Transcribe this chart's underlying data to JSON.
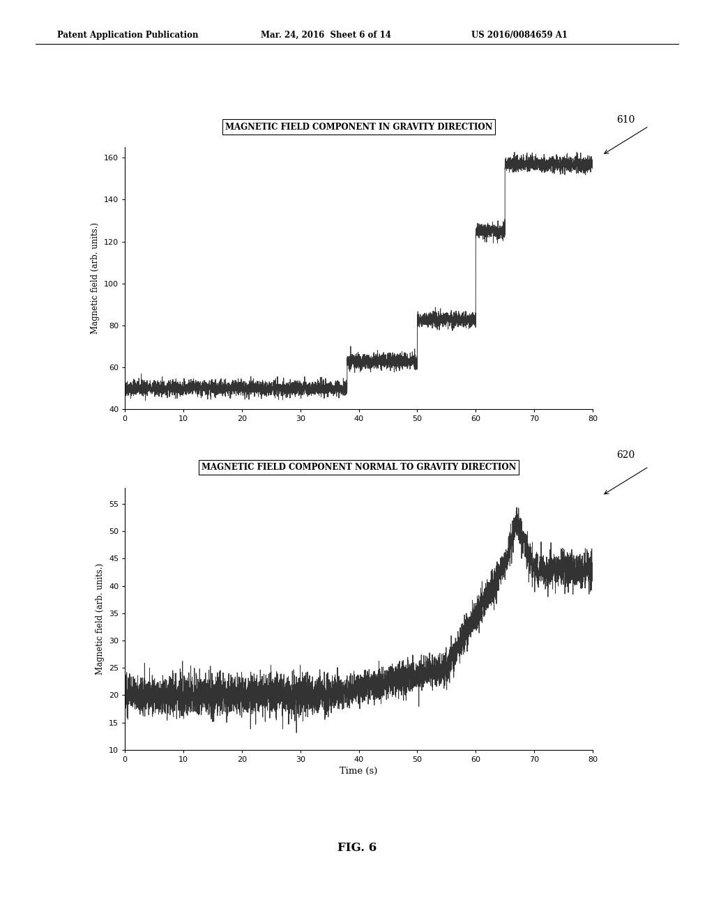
{
  "fig_width": 10.24,
  "fig_height": 13.2,
  "dpi": 100,
  "bg_color": "#ffffff",
  "header_text": "Patent Application Publication",
  "header_date": "Mar. 24, 2016  Sheet 6 of 14",
  "header_patent": "US 2016/0084659 A1",
  "fig_label": "FIG. 6",
  "plot1_title": "MAGNETIC FIELD COMPONENT IN GRAVITY DIRECTION",
  "plot1_ylabel": "Magnetic field (arb. units.)",
  "plot1_ylim": [
    40,
    165
  ],
  "plot1_yticks": [
    40,
    60,
    80,
    100,
    120,
    140,
    160
  ],
  "plot1_label": "610",
  "plot2_title": "MAGNETIC FIELD COMPONENT NORMAL TO GRAVITY DIRECTION",
  "plot2_ylabel": "Magnetic field (arb. units.)",
  "plot2_ylim": [
    10,
    58
  ],
  "plot2_yticks": [
    10,
    15,
    20,
    25,
    30,
    35,
    40,
    45,
    50,
    55
  ],
  "plot2_label": "620",
  "xlabel": "Time (s)",
  "xlim": [
    0,
    80
  ],
  "xticks": [
    0,
    10,
    20,
    30,
    40,
    50,
    60,
    70,
    80
  ],
  "line_color": "#333333",
  "line_width": 0.7,
  "noise_seed": 42
}
